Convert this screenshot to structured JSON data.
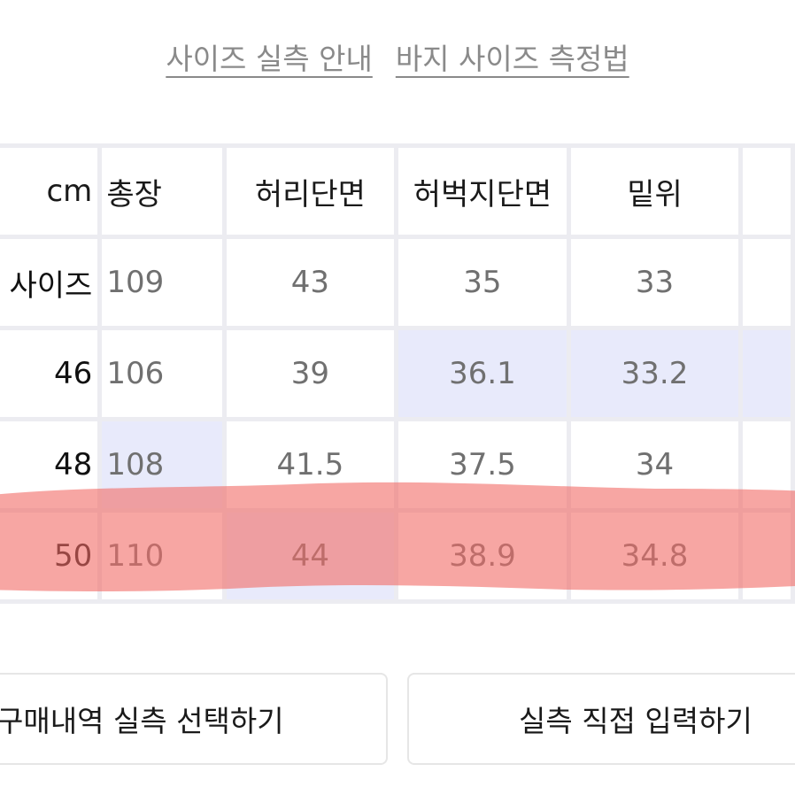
{
  "links": {
    "size_guide": "사이즈 실측 안내",
    "pants_measure": "바지 사이즈 측정법"
  },
  "table": {
    "header": [
      "cm",
      "총장",
      "허리단면",
      "허벅지단면",
      "밑위",
      ""
    ],
    "rows": [
      {
        "cells": [
          "내 사이즈",
          "109",
          "43",
          "35",
          "33",
          ""
        ]
      },
      {
        "cells": [
          "46",
          "106",
          "39",
          "36.1",
          "33.2",
          ""
        ]
      },
      {
        "cells": [
          "48",
          "108",
          "41.5",
          "37.5",
          "34",
          ""
        ]
      },
      {
        "cells": [
          "50",
          "110",
          "44",
          "38.9",
          "34.8",
          ""
        ]
      }
    ]
  },
  "buttons": {
    "select_from_purchases": "구매내역 실측 선택하기",
    "manual_input": "실측 직접 입력하기"
  },
  "colors": {
    "highlight_cell": "#e8eafb",
    "red_marker": "#f26b66"
  }
}
